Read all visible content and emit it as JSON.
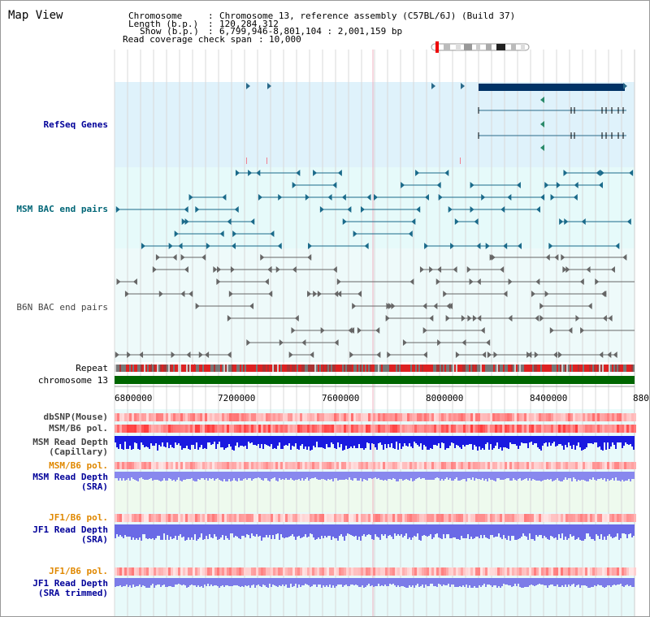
{
  "title": "Map View",
  "info": {
    "chromosome_label": "Chromosome",
    "chromosome_value": "Chromosome 13, reference assembly (C57BL/6J) (Build 37)",
    "length_label": "Length (b.p.)",
    "length_value": "120,284,312",
    "show_label": "Show (b.p.)",
    "show_value": "6,799,946-8,801,104 : 2,001,159 bp",
    "coverage_label": "Read coverage check span",
    "coverage_value": "10,000"
  },
  "tracks": {
    "refseq": "RefSeq Genes",
    "msm_bac": "MSM BAC end pairs",
    "b6n_bac": "B6N BAC end pairs",
    "repeat": "Repeat",
    "chromosome": "chromosome 13",
    "dbsnp": "dbSNP(Mouse)",
    "msm_pol": "MSM/B6 pol.",
    "msm_depth_cap_1": "MSM Read Depth",
    "msm_depth_cap_2": "(Capillary)",
    "msm_pol_sra": "MSM/B6 pol.",
    "msm_depth_sra_1": "MSM Read Depth",
    "msm_depth_sra_2": "(SRA)",
    "jf1_pol": "JF1/B6 pol.",
    "jf1_depth_1": "JF1 Read Depth",
    "jf1_depth_2": "(SRA)",
    "jf1_pol_trim": "JF1/B6 pol.",
    "jf1_depth_trim_1": "JF1 Read Depth",
    "jf1_depth_trim_2": "(SRA trimmed)"
  },
  "axis": {
    "ticks": [
      "6800000",
      "7200000",
      "7600000",
      "8000000",
      "8400000",
      "880"
    ]
  },
  "colors": {
    "refseq_bg": "#dff2fb",
    "msm_bg": "#e6fafa",
    "b6n_bg": "#eefafa",
    "refseq_label": "#000099",
    "msm_label": "#006677",
    "b6n_label": "#444444",
    "pol_label": "#e08800",
    "depth_label": "#000099",
    "chromosome_bar": "#006600"
  }
}
